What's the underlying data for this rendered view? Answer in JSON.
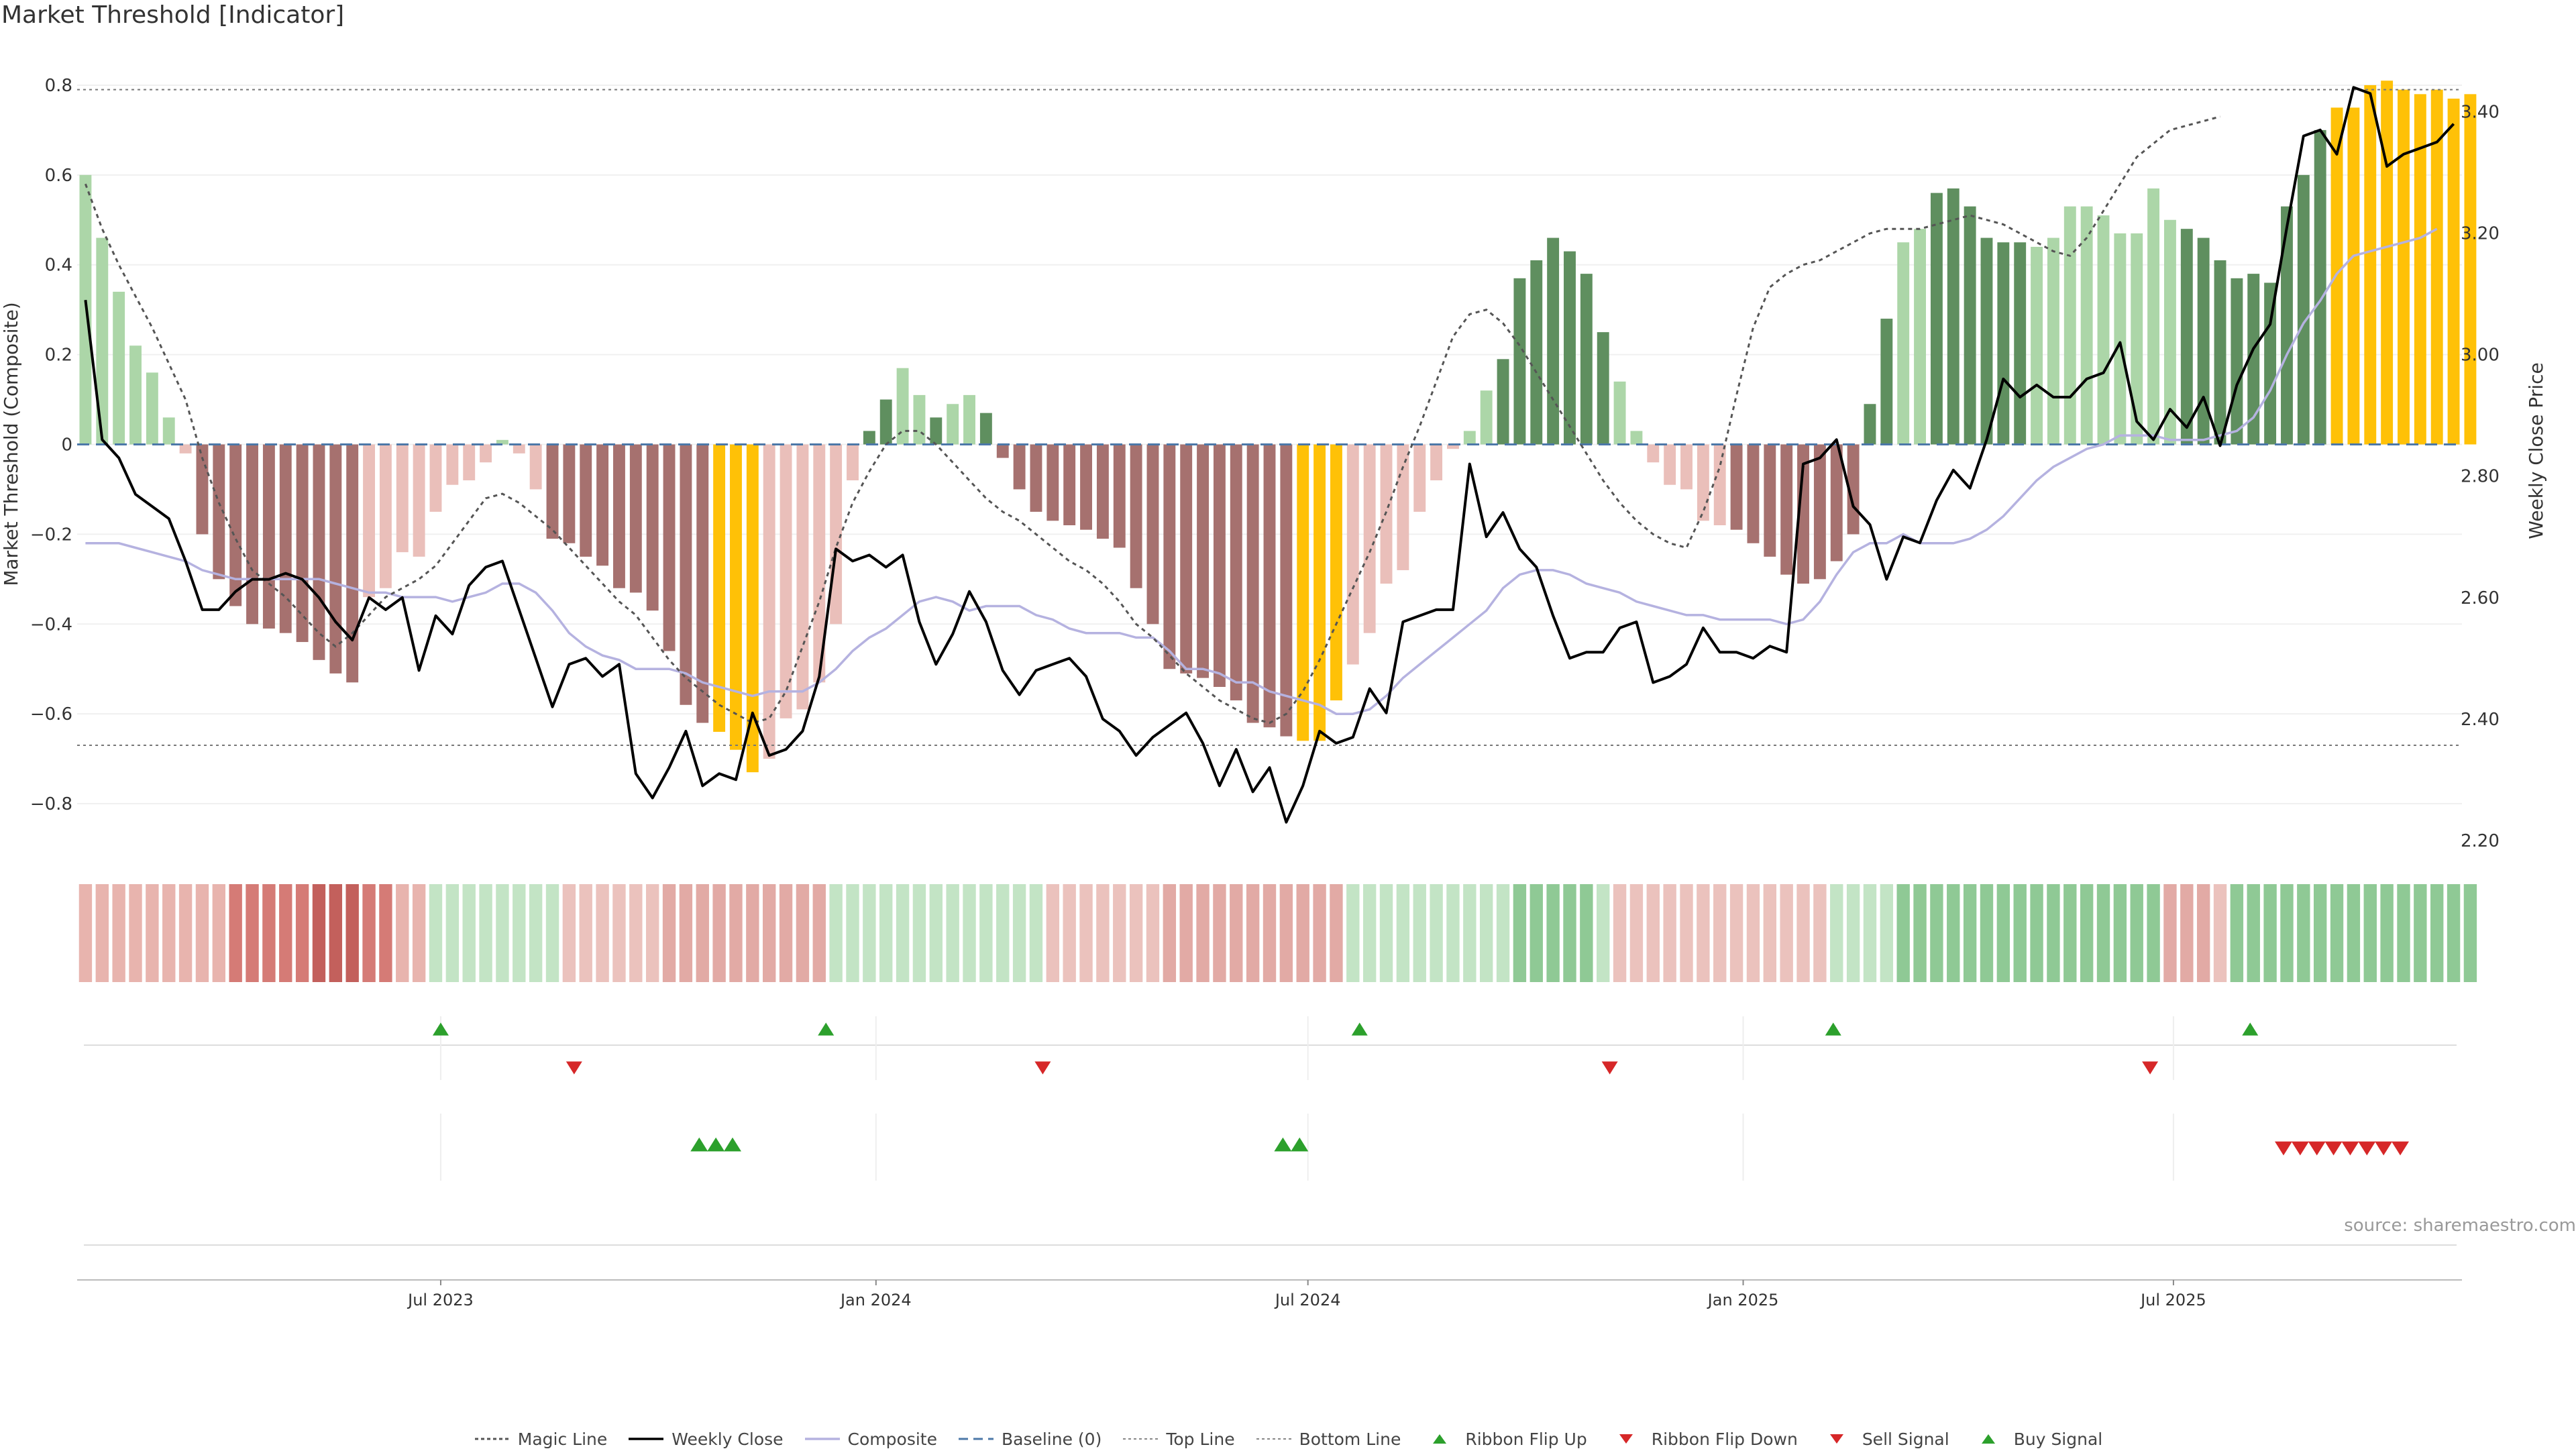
{
  "title": "Market Threshold [Indicator]",
  "source": "source: sharemaestro.com",
  "colors": {
    "strong_pos": "#5f8f5f",
    "weak_pos": "#acd6a8",
    "strong_neg": "#a6716f",
    "weak_neg": "#eabfba",
    "extreme": "#ffc107",
    "close": "#000000",
    "composite": "#b5b2e0",
    "magic": "#555555",
    "baseline": "#4c78a8",
    "threshold": "#888888",
    "up": "#2ca02c",
    "down": "#d62728"
  },
  "legend": [
    {
      "label": "Magic Line",
      "kind": "magic"
    },
    {
      "label": "Weekly Close",
      "kind": "close"
    },
    {
      "label": "Composite",
      "kind": "composite"
    },
    {
      "label": "Baseline (0)",
      "kind": "baseline"
    },
    {
      "label": "Top Line",
      "kind": "top"
    },
    {
      "label": "Bottom Line",
      "kind": "bottom"
    },
    {
      "label": "Ribbon Flip Up",
      "kind": "flip-up"
    },
    {
      "label": "Ribbon Flip Down",
      "kind": "flip-down"
    },
    {
      "label": "Sell Signal",
      "kind": "sell"
    },
    {
      "label": "Buy Signal",
      "kind": "buy"
    }
  ],
  "chart_data": {
    "type": "bar",
    "title": "Market Threshold [Indicator]",
    "ylabel": "Market Threshold (Composite)",
    "y2label": "Weekly Close Price",
    "ylim": [
      -0.9,
      0.9
    ],
    "y2lim": [
      2.1866,
      3.5177
    ],
    "yticks": [
      0.8,
      0.6,
      0.4,
      0.2,
      0,
      -0.2,
      -0.4,
      -0.6,
      -0.8
    ],
    "ytick_labels": [
      "0.8",
      "0.6",
      "0.4",
      "0.2",
      "0",
      "−0.2",
      "−0.4",
      "−0.6",
      "−0.8"
    ],
    "y2ticks": [
      3.4,
      3.2,
      3.0,
      2.8,
      2.6,
      2.4,
      2.2
    ],
    "y2tick_labels": [
      "3.40",
      "3.20",
      "3.00",
      "2.80",
      "2.60",
      "2.40",
      "2.20"
    ],
    "top_line": 0.79,
    "bottom_line": -0.67,
    "xrange": [
      0,
      143
    ],
    "xticks": [
      {
        "label": "Jul 2023",
        "week": 21.3
      },
      {
        "label": "Jan 2024",
        "week": 47.4
      },
      {
        "label": "Jul 2024",
        "week": 73.3
      },
      {
        "label": "Jan 2025",
        "week": 99.4
      },
      {
        "label": "Jul 2025",
        "week": 125.2
      }
    ],
    "composite_values": [
      0.6,
      0.46,
      0.34,
      0.22,
      0.16,
      0.06,
      -0.02,
      -0.2,
      -0.3,
      -0.36,
      -0.4,
      -0.41,
      -0.42,
      -0.44,
      -0.48,
      -0.51,
      -0.53,
      -0.34,
      -0.32,
      -0.24,
      -0.25,
      -0.15,
      -0.09,
      -0.08,
      -0.04,
      0.01,
      -0.02,
      -0.1,
      -0.21,
      -0.22,
      -0.25,
      -0.27,
      -0.32,
      -0.33,
      -0.37,
      -0.46,
      -0.58,
      -0.62,
      -0.64,
      -0.68,
      -0.73,
      -0.7,
      -0.61,
      -0.59,
      -0.53,
      -0.4,
      -0.08,
      0.03,
      0.1,
      0.17,
      0.11,
      0.06,
      0.09,
      0.11,
      0.07,
      -0.03,
      -0.1,
      -0.15,
      -0.17,
      -0.18,
      -0.19,
      -0.21,
      -0.23,
      -0.32,
      -0.4,
      -0.5,
      -0.51,
      -0.52,
      -0.54,
      -0.57,
      -0.62,
      -0.63,
      -0.65,
      -0.66,
      -0.66,
      -0.57,
      -0.49,
      -0.42,
      -0.31,
      -0.28,
      -0.15,
      -0.08,
      -0.01,
      0.03,
      0.12,
      0.19,
      0.37,
      0.41,
      0.46,
      0.43,
      0.38,
      0.25,
      0.14,
      0.03,
      -0.04,
      -0.09,
      -0.1,
      -0.17,
      -0.18,
      -0.19,
      -0.22,
      -0.25,
      -0.29,
      -0.31,
      -0.3,
      -0.26,
      -0.2,
      0.09,
      0.28,
      0.45,
      0.48,
      0.56,
      0.57,
      0.53,
      0.46,
      0.45,
      0.45,
      0.44,
      0.46,
      0.53,
      0.53,
      0.51,
      0.47,
      0.47,
      0.57,
      0.5,
      0.48,
      0.46,
      0.41,
      0.37,
      0.38,
      0.36,
      0.53,
      0.6,
      0.7,
      0.75,
      0.75,
      0.8,
      0.81,
      0.79,
      0.78,
      0.79,
      0.77,
      0.78
    ],
    "bar_classes": "WWWWWWNSSSSSSSSSSWWWWWWWWWWNSSSSSSSSSSXXXWWWWWWSSWWSWNSSSSSSSSSSSSSSSSSSSXXXWWWWWWWWWSSSSSSSWWWWWWNSSSSSSSSSSWWSSSSSSWWWWWWWWWSSSSSSSSSXXXXXXXXX",
    "weekly_close": [
      3.09,
      2.86,
      2.83,
      2.77,
      2.75,
      2.73,
      2.66,
      2.58,
      2.58,
      2.61,
      2.63,
      2.63,
      2.64,
      2.63,
      2.6,
      2.56,
      2.53,
      2.6,
      2.58,
      2.6,
      2.48,
      2.57,
      2.54,
      2.62,
      2.65,
      2.66,
      2.58,
      2.5,
      2.42,
      2.49,
      2.5,
      2.47,
      2.49,
      2.31,
      2.27,
      2.32,
      2.38,
      2.29,
      2.31,
      2.3,
      2.41,
      2.34,
      2.35,
      2.38,
      2.47,
      2.68,
      2.66,
      2.67,
      2.65,
      2.67,
      2.56,
      2.49,
      2.54,
      2.61,
      2.56,
      2.48,
      2.44,
      2.48,
      2.49,
      2.5,
      2.47,
      2.4,
      2.38,
      2.34,
      2.37,
      2.39,
      2.41,
      2.36,
      2.29,
      2.35,
      2.28,
      2.32,
      2.23,
      2.29,
      2.38,
      2.36,
      2.37,
      2.45,
      2.41,
      2.56,
      2.57,
      2.58,
      2.58,
      2.82,
      2.7,
      2.74,
      2.68,
      2.65,
      2.57,
      2.5,
      2.51,
      2.51,
      2.55,
      2.56,
      2.46,
      2.47,
      2.49,
      2.55,
      2.51,
      2.51,
      2.5,
      2.52,
      2.51,
      2.82,
      2.83,
      2.86,
      2.75,
      2.72,
      2.63,
      2.7,
      2.69,
      2.76,
      2.81,
      2.78,
      2.86,
      2.96,
      2.93,
      2.95,
      2.93,
      2.93,
      2.96,
      2.97,
      3.02,
      2.89,
      2.86,
      2.91,
      2.88,
      2.93,
      2.85,
      2.95,
      3.01,
      3.05,
      3.21,
      3.36,
      3.37,
      3.33,
      3.44,
      3.43,
      3.31,
      3.33,
      3.34,
      3.35,
      3.38
    ],
    "composite_line": [
      -0.22,
      -0.22,
      -0.22,
      -0.23,
      -0.24,
      -0.25,
      -0.26,
      -0.28,
      -0.29,
      -0.3,
      -0.3,
      -0.3,
      -0.3,
      -0.3,
      -0.3,
      -0.31,
      -0.32,
      -0.33,
      -0.33,
      -0.34,
      -0.34,
      -0.34,
      -0.35,
      -0.34,
      -0.33,
      -0.31,
      -0.31,
      -0.33,
      -0.37,
      -0.42,
      -0.45,
      -0.47,
      -0.48,
      -0.5,
      -0.5,
      -0.5,
      -0.51,
      -0.53,
      -0.54,
      -0.55,
      -0.56,
      -0.55,
      -0.55,
      -0.55,
      -0.53,
      -0.5,
      -0.46,
      -0.43,
      -0.41,
      -0.38,
      -0.35,
      -0.34,
      -0.35,
      -0.37,
      -0.36,
      -0.36,
      -0.36,
      -0.38,
      -0.39,
      -0.41,
      -0.42,
      -0.42,
      -0.42,
      -0.43,
      -0.43,
      -0.46,
      -0.5,
      -0.5,
      -0.51,
      -0.53,
      -0.53,
      -0.55,
      -0.56,
      -0.57,
      -0.58,
      -0.6,
      -0.6,
      -0.59,
      -0.56,
      -0.52,
      -0.49,
      -0.46,
      -0.43,
      -0.4,
      -0.37,
      -0.32,
      -0.29,
      -0.28,
      -0.28,
      -0.29,
      -0.31,
      -0.32,
      -0.33,
      -0.35,
      -0.36,
      -0.37,
      -0.38,
      -0.38,
      -0.39,
      -0.39,
      -0.39,
      -0.39,
      -0.4,
      -0.39,
      -0.35,
      -0.29,
      -0.24,
      -0.22,
      -0.22,
      -0.2,
      -0.22,
      -0.22,
      -0.22,
      -0.21,
      -0.19,
      -0.16,
      -0.12,
      -0.08,
      -0.05,
      -0.03,
      -0.01,
      0.0,
      0.02,
      0.02,
      0.02,
      0.01,
      0.01,
      0.01,
      0.02,
      0.03,
      0.06,
      0.12,
      0.2,
      0.27,
      0.32,
      0.38,
      0.42,
      0.43,
      0.44,
      0.45,
      0.46,
      0.48
    ],
    "magic_line": [
      0.58,
      0.48,
      0.4,
      0.33,
      0.26,
      0.18,
      0.1,
      -0.03,
      -0.13,
      -0.21,
      -0.28,
      -0.31,
      -0.34,
      -0.38,
      -0.42,
      -0.45,
      -0.42,
      -0.38,
      -0.34,
      -0.32,
      -0.3,
      -0.27,
      -0.22,
      -0.17,
      -0.12,
      -0.11,
      -0.13,
      -0.16,
      -0.19,
      -0.23,
      -0.27,
      -0.31,
      -0.35,
      -0.38,
      -0.43,
      -0.48,
      -0.52,
      -0.55,
      -0.58,
      -0.6,
      -0.62,
      -0.61,
      -0.55,
      -0.45,
      -0.35,
      -0.23,
      -0.13,
      -0.06,
      0.0,
      0.03,
      0.03,
      0.0,
      -0.04,
      -0.08,
      -0.12,
      -0.15,
      -0.17,
      -0.2,
      -0.23,
      -0.26,
      -0.28,
      -0.31,
      -0.35,
      -0.4,
      -0.43,
      -0.47,
      -0.51,
      -0.54,
      -0.57,
      -0.59,
      -0.61,
      -0.62,
      -0.6,
      -0.55,
      -0.48,
      -0.4,
      -0.32,
      -0.24,
      -0.15,
      -0.05,
      0.04,
      0.14,
      0.24,
      0.29,
      0.3,
      0.27,
      0.22,
      0.16,
      0.1,
      0.04,
      -0.02,
      -0.08,
      -0.13,
      -0.17,
      -0.2,
      -0.22,
      -0.23,
      -0.15,
      -0.05,
      0.11,
      0.26,
      0.35,
      0.38,
      0.4,
      0.41,
      0.43,
      0.45,
      0.47,
      0.48,
      0.48,
      0.48,
      0.49,
      0.5,
      0.51,
      0.5,
      0.49,
      0.47,
      0.45,
      0.43,
      0.42,
      0.46,
      0.52,
      0.58,
      0.64,
      0.67,
      0.7,
      0.71,
      0.72,
      0.73
    ],
    "ribbon": "SSSSSSSSSSSSSSSSSSSSSWWWWWWWWMMMMMMMMMMMMMMMMWWWWWWWWWWWWWMMMMMMMMMMMMMMMMMMWWWWWWWWWWWWWWWWMMMMMMMMMMMMMWWWWWWWWWWWWWWWWWWWWMMMMWWWWWWWWWWW",
    "ribbon_flip_up_weeks": [
      21.3,
      44.4,
      76.4,
      104.8,
      129.8
    ],
    "ribbon_flip_down_weeks": [
      29.3,
      57.4,
      91.4,
      123.8
    ],
    "buy_signal_weeks": [
      36.8,
      37.8,
      38.8,
      71.8,
      72.8
    ],
    "sell_signal_weeks": [
      131.8,
      132.8,
      133.8,
      134.8,
      135.8,
      136.8,
      137.8,
      138.8
    ]
  }
}
